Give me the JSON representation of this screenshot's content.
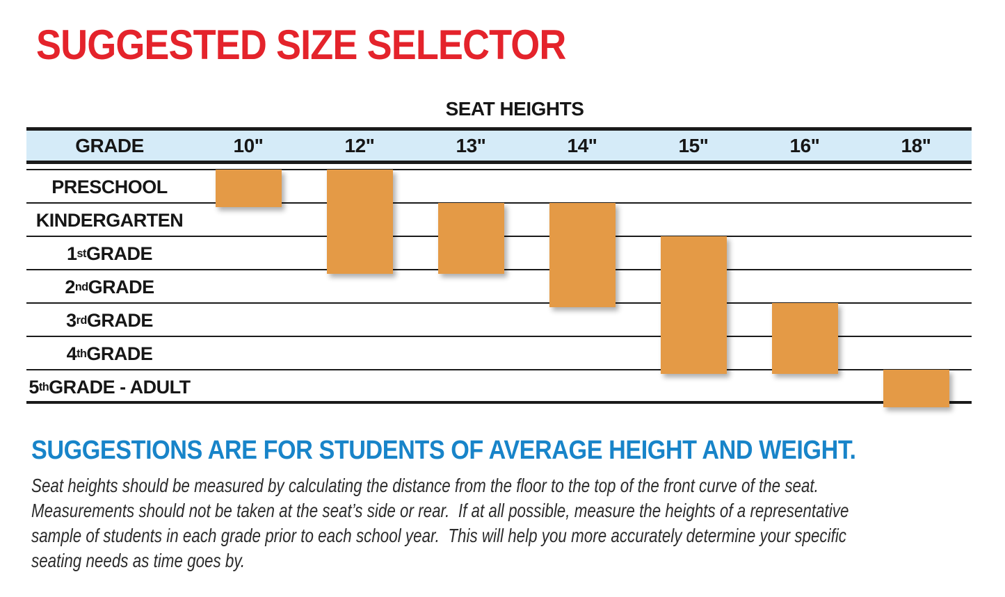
{
  "title": "SUGGESTED SIZE SELECTOR",
  "colors": {
    "title_red": "#E4232B",
    "heading_blue": "#1884C9",
    "header_bg": "#D5EBF8",
    "bar_orange": "#E49A46",
    "line": "#1A1A1A"
  },
  "table": {
    "title": "SEAT HEIGHTS",
    "grade_header": "GRADE",
    "column_headers": [
      "10\"",
      "12\"",
      "13\"",
      "14\"",
      "15\"",
      "16\"",
      "18\""
    ],
    "rows": [
      {
        "pre": "PRESCHOOL",
        "sup": "",
        "post": ""
      },
      {
        "pre": "KINDERGARTEN",
        "sup": "",
        "post": ""
      },
      {
        "pre": "1",
        "sup": "st",
        "post": " GRADE"
      },
      {
        "pre": "2",
        "sup": "nd",
        "post": " GRADE"
      },
      {
        "pre": "3",
        "sup": "rd",
        "post": " GRADE"
      },
      {
        "pre": "4",
        "sup": "th",
        "post": " GRADE"
      },
      {
        "pre": "5",
        "sup": "th",
        "post": " GRADE - ADULT"
      }
    ]
  },
  "chart_data": {
    "type": "table",
    "title": "SEAT HEIGHTS",
    "x_categories": [
      "10\"",
      "12\"",
      "13\"",
      "14\"",
      "15\"",
      "16\"",
      "18\""
    ],
    "y_categories": [
      "PRESCHOOL",
      "KINDERGARTEN",
      "1st GRADE",
      "2nd GRADE",
      "3rd GRADE",
      "4th GRADE",
      "5th GRADE - ADULT"
    ],
    "bars": [
      {
        "seat_height": "10\"",
        "col": 0,
        "first_row": 0,
        "last_row": 0,
        "grades": [
          "PRESCHOOL"
        ]
      },
      {
        "seat_height": "12\"",
        "col": 1,
        "first_row": 0,
        "last_row": 2,
        "grades": [
          "PRESCHOOL",
          "KINDERGARTEN",
          "1st GRADE"
        ]
      },
      {
        "seat_height": "13\"",
        "col": 2,
        "first_row": 1,
        "last_row": 2,
        "grades": [
          "KINDERGARTEN",
          "1st GRADE"
        ]
      },
      {
        "seat_height": "14\"",
        "col": 3,
        "first_row": 1,
        "last_row": 3,
        "grades": [
          "KINDERGARTEN",
          "1st GRADE",
          "2nd GRADE"
        ]
      },
      {
        "seat_height": "15\"",
        "col": 4,
        "first_row": 2,
        "last_row": 5,
        "grades": [
          "1st GRADE",
          "2nd GRADE",
          "3rd GRADE",
          "4th GRADE"
        ]
      },
      {
        "seat_height": "16\"",
        "col": 5,
        "first_row": 4,
        "last_row": 5,
        "grades": [
          "3rd GRADE",
          "4th GRADE"
        ]
      },
      {
        "seat_height": "18\"",
        "col": 6,
        "first_row": 6,
        "last_row": 6,
        "grades": [
          "5th GRADE - ADULT"
        ]
      }
    ],
    "recommendations": {
      "PRESCHOOL": [
        "10\"",
        "12\""
      ],
      "KINDERGARTEN": [
        "12\"",
        "13\"",
        "14\""
      ],
      "1st GRADE": [
        "12\"",
        "13\"",
        "14\"",
        "15\""
      ],
      "2nd GRADE": [
        "14\"",
        "15\""
      ],
      "3rd GRADE": [
        "15\"",
        "16\""
      ],
      "4th GRADE": [
        "15\"",
        "16\""
      ],
      "5th GRADE - ADULT": [
        "18\""
      ]
    },
    "bar_color": "#E49A46",
    "legend": "none",
    "grid": "horizontal-row-lines"
  },
  "note": {
    "heading": "SUGGESTIONS ARE FOR STUDENTS OF AVERAGE HEIGHT AND WEIGHT.",
    "lines": [
      "Seat heights should be measured by calculating the distance from the floor to the top of the front curve of the seat.",
      "Measurements should not be taken at the seat’s side or rear.  If at all possible, measure the heights of a representative",
      "sample of students in each grade prior to each school year.  This will help you more accurately determine your specific",
      "seating needs as time goes by."
    ]
  }
}
